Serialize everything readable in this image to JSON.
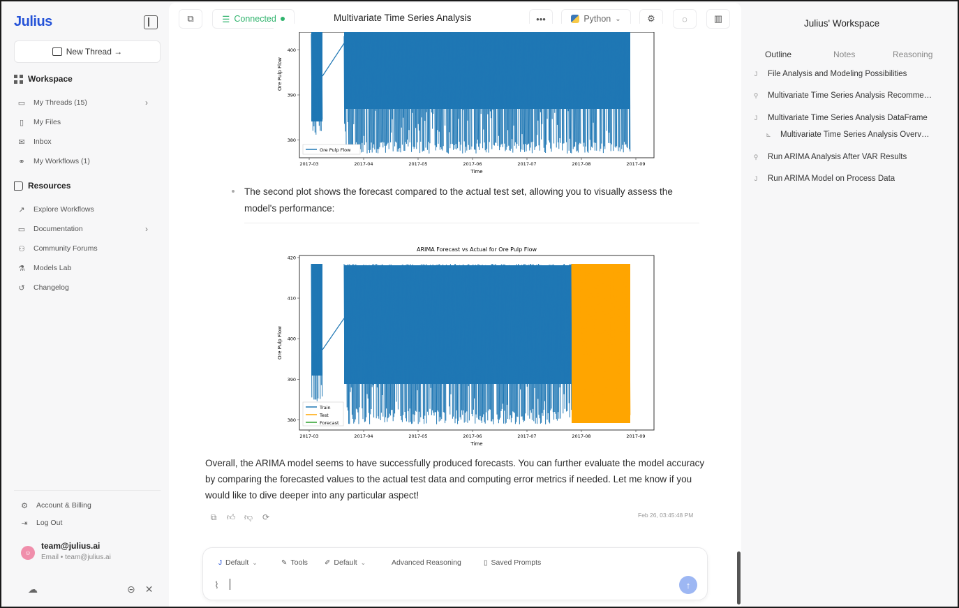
{
  "app": {
    "logo": "Julius",
    "new_thread": "New Thread →"
  },
  "sidebar": {
    "workspace_title": "Workspace",
    "workspace_items": [
      {
        "label": "My Threads (15)",
        "icon": "chat-icon",
        "chevron": true
      },
      {
        "label": "My Files",
        "icon": "file-icon"
      },
      {
        "label": "Inbox",
        "icon": "mail-icon"
      },
      {
        "label": "My Workflows (1)",
        "icon": "workflow-icon"
      }
    ],
    "resources_title": "Resources",
    "resources_items": [
      {
        "label": "Explore Workflows",
        "icon": "trend-icon"
      },
      {
        "label": "Documentation",
        "icon": "book-icon",
        "chevron": true
      },
      {
        "label": "Community Forums",
        "icon": "people-icon"
      },
      {
        "label": "Models Lab",
        "icon": "flask-icon"
      },
      {
        "label": "Changelog",
        "icon": "history-icon"
      }
    ],
    "account": "Account & Billing",
    "logout": "Log Out",
    "user_name": "team@julius.ai",
    "user_email": "Email • team@julius.ai"
  },
  "topbar": {
    "connection": "Connected",
    "title": "Multivariate Time Series Analysis",
    "language": "Python"
  },
  "chart_top": {
    "type": "line",
    "ylabel": "Ore Pulp Flow",
    "xlabel": "Time",
    "yticks": [
      "380",
      "390",
      "400"
    ],
    "xticks": [
      "2017-03",
      "2017-04",
      "2017-05",
      "2017-06",
      "2017-07",
      "2017-08",
      "2017-09"
    ],
    "legend": [
      "Ore Pulp Flow"
    ]
  },
  "chart_data": [
    {
      "type": "line",
      "title": "",
      "xlabel": "Time",
      "ylabel": "Ore Pulp Flow",
      "x_ticks": [
        "2017-03",
        "2017-04",
        "2017-05",
        "2017-06",
        "2017-07",
        "2017-08",
        "2017-09"
      ],
      "y_ticks": [
        380,
        390,
        400
      ],
      "series": [
        {
          "name": "Ore Pulp Flow",
          "color": "#1f77b4"
        }
      ],
      "legend_position": "bottom-left"
    },
    {
      "type": "line",
      "title": "ARIMA Forecast vs Actual for Ore Pulp Flow",
      "xlabel": "Time",
      "ylabel": "Ore Pulp Flow",
      "x_ticks": [
        "2017-03",
        "2017-04",
        "2017-05",
        "2017-06",
        "2017-07",
        "2017-08",
        "2017-09"
      ],
      "y_ticks": [
        380,
        390,
        400,
        410,
        420
      ],
      "series": [
        {
          "name": "Train",
          "color": "#1f77b4"
        },
        {
          "name": "Test",
          "color": "#ffa500"
        },
        {
          "name": "Forecast",
          "color": "#2ca02c"
        }
      ],
      "legend_position": "bottom-left"
    }
  ],
  "chart_bottom": {
    "title": "ARIMA Forecast vs Actual for Ore Pulp Flow",
    "ylabel": "Ore Pulp Flow",
    "xlabel": "Time",
    "yticks": [
      "380",
      "390",
      "400",
      "410",
      "420"
    ],
    "xticks": [
      "2017-03",
      "2017-04",
      "2017-05",
      "2017-06",
      "2017-07",
      "2017-08",
      "2017-09"
    ],
    "legend": [
      "Train",
      "Test",
      "Forecast"
    ]
  },
  "message": {
    "bullet": "The second plot shows the forecast compared to the actual test set, allowing you to visually assess the model's performance:",
    "summary": "Overall, the ARIMA model seems to have successfully produced forecasts. You can further evaluate the model accuracy by comparing the forecasted values to the actual test data and computing error metrics if needed. Let me know if you would like to dive deeper into any particular aspect!",
    "timestamp": "Feb 26, 03:45:48 PM"
  },
  "composer": {
    "model": "Default",
    "tools": "Tools",
    "mode": "Default",
    "advanced": "Advanced Reasoning",
    "saved": "Saved Prompts"
  },
  "right_panel": {
    "title": "Julius' Workspace",
    "tabs": [
      "Outline",
      "Notes",
      "Reasoning"
    ],
    "items": [
      {
        "label": "File Analysis and Modeling Possibilities",
        "icon": "J"
      },
      {
        "label": "Multivariate Time Series Analysis Recomme…",
        "icon": "person"
      },
      {
        "label": "Multivariate Time Series Analysis DataFrame",
        "icon": "J"
      },
      {
        "label": "Multivariate Time Series Analysis Overv…",
        "icon": "chart",
        "indent": true
      },
      {
        "label": "Run ARIMA Analysis After VAR Results",
        "icon": "person"
      },
      {
        "label": "Run ARIMA Model on Process Data",
        "icon": "J"
      }
    ]
  },
  "colors": {
    "brand": "#2553d8",
    "connected": "#2fb36c",
    "train": "#1f77b4",
    "test": "#ffa500",
    "forecast": "#2ca02c"
  }
}
